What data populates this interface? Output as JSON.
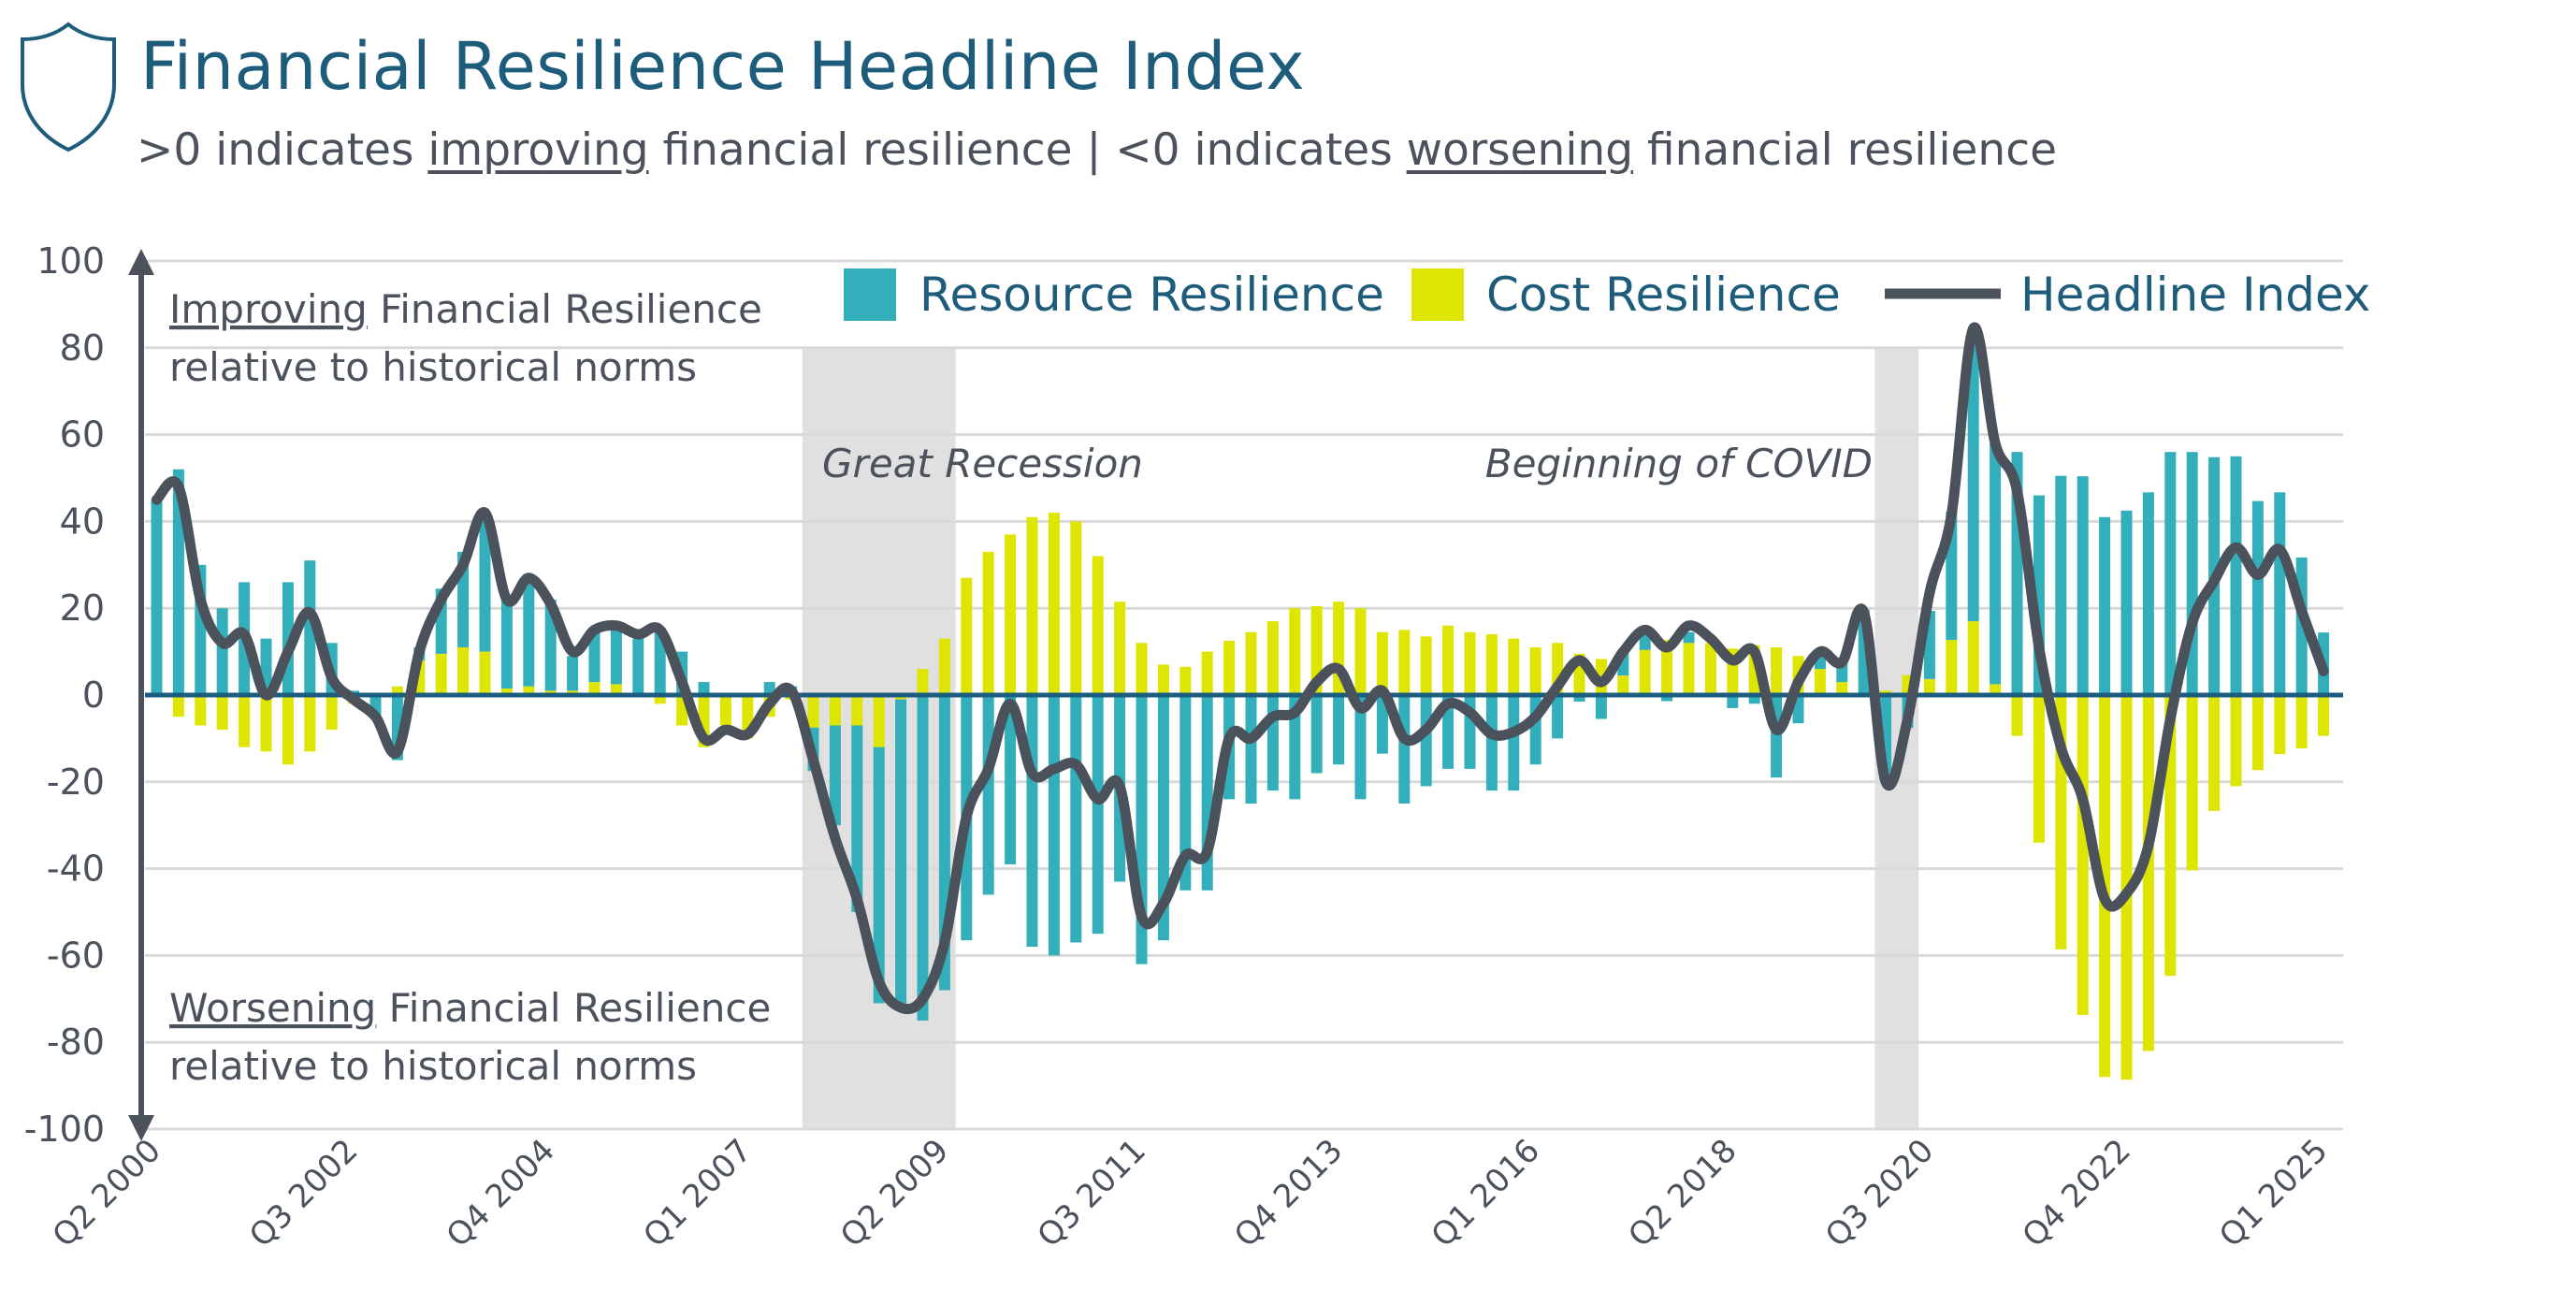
{
  "header": {
    "title": "Financial Resilience Headline Index",
    "subtitle_parts": [
      ">0 indicates ",
      "improving",
      " financial resilience | <0 indicates ",
      "worsening",
      " financial resilience"
    ],
    "icon": "shield-icon"
  },
  "colors": {
    "resource": "#33AEBB",
    "cost": "#DDE500",
    "headline": "#4B525C",
    "zero_line": "#1B5D80",
    "title": "#1D5C7A",
    "shade": "#E0E0E0",
    "grid": "#D9D9D9"
  },
  "chart_data": {
    "type": "bar",
    "stacked": true,
    "ylim": [
      -100,
      100
    ],
    "yticks": [
      100,
      80,
      60,
      40,
      20,
      0,
      -20,
      -40,
      -60,
      -80,
      -100
    ],
    "grid": true,
    "legend_placement": "top",
    "x_tick_labels": [
      "Q2 2000",
      "Q3 2002",
      "Q4 2004",
      "Q1 2007",
      "Q2 2009",
      "Q3 2011",
      "Q4 2013",
      "Q1 2016",
      "Q2 2018",
      "Q3 2020",
      "Q4 2022",
      "Q1 2025"
    ],
    "categories": [
      "Q2 2000",
      "Q3 2000",
      "Q4 2000",
      "Q1 2001",
      "Q2 2001",
      "Q3 2001",
      "Q4 2001",
      "Q1 2002",
      "Q2 2002",
      "Q3 2002",
      "Q4 2002",
      "Q1 2003",
      "Q2 2003",
      "Q3 2003",
      "Q4 2003",
      "Q1 2004",
      "Q2 2004",
      "Q3 2004",
      "Q4 2004",
      "Q1 2005",
      "Q2 2005",
      "Q3 2005",
      "Q4 2005",
      "Q1 2006",
      "Q2 2006",
      "Q3 2006",
      "Q4 2006",
      "Q1 2007",
      "Q2 2007",
      "Q3 2007",
      "Q4 2007",
      "Q1 2008",
      "Q2 2008",
      "Q3 2008",
      "Q4 2008",
      "Q1 2009",
      "Q2 2009",
      "Q3 2009",
      "Q4 2009",
      "Q1 2010",
      "Q2 2010",
      "Q3 2010",
      "Q4 2010",
      "Q1 2011",
      "Q2 2011",
      "Q3 2011",
      "Q4 2011",
      "Q1 2012",
      "Q2 2012",
      "Q3 2012",
      "Q4 2012",
      "Q1 2013",
      "Q2 2013",
      "Q3 2013",
      "Q4 2013",
      "Q1 2014",
      "Q2 2014",
      "Q3 2014",
      "Q4 2014",
      "Q1 2015",
      "Q2 2015",
      "Q3 2015",
      "Q4 2015",
      "Q1 2016",
      "Q2 2016",
      "Q3 2016",
      "Q4 2016",
      "Q1 2017",
      "Q2 2017",
      "Q3 2017",
      "Q4 2017",
      "Q1 2018",
      "Q2 2018",
      "Q3 2018",
      "Q4 2018",
      "Q1 2019",
      "Q2 2019",
      "Q3 2019",
      "Q4 2019",
      "Q1 2020",
      "Q2 2020",
      "Q3 2020",
      "Q4 2020",
      "Q1 2021",
      "Q2 2021",
      "Q3 2021",
      "Q4 2021",
      "Q1 2022",
      "Q2 2022",
      "Q3 2022",
      "Q4 2022",
      "Q1 2023",
      "Q2 2023",
      "Q3 2023",
      "Q4 2023",
      "Q1 2024",
      "Q2 2024",
      "Q3 2024",
      "Q4 2024",
      "Q1 2025"
    ],
    "series": [
      {
        "name": "Resource Resilience",
        "kind": "bar",
        "values": [
          45,
          52,
          30,
          20,
          26,
          13,
          26,
          31,
          12,
          1,
          -5,
          -15,
          3,
          15,
          22,
          31,
          21,
          24,
          21,
          8,
          11.5,
          12.5,
          13,
          15.5,
          10,
          3,
          0,
          0.5,
          3,
          2,
          -10,
          -23,
          -43,
          -59,
          -70,
          -75,
          -68,
          -56.5,
          -46,
          -39,
          -58,
          -60,
          -57,
          -55,
          -43,
          -62,
          -56.5,
          -45,
          -45,
          -24,
          -25,
          -22,
          -24,
          -18,
          -16,
          -24,
          -13.5,
          -25,
          -21,
          -17,
          -17,
          -22,
          -22,
          -16,
          -10,
          -1.5,
          -5.5,
          5.5,
          3.5,
          -1.4,
          2.5,
          0,
          -3,
          -2,
          -19,
          -6.5,
          3,
          4.6,
          19.7,
          -20,
          -7.6,
          15.7,
          29.5,
          67.5,
          55.5,
          56,
          46,
          50.5,
          50.4,
          41,
          42.5,
          46.7,
          56,
          56,
          54.8,
          55,
          44.7,
          46.7,
          31.7,
          14.4
        ]
      },
      {
        "name": "Cost Resilience",
        "kind": "bar",
        "values": [
          0,
          -5,
          -7,
          -8,
          -12,
          -13,
          -16,
          -13,
          -8,
          -2,
          0,
          2,
          8,
          9.5,
          11,
          10,
          1.5,
          2,
          1,
          1,
          3,
          2.5,
          0,
          -2,
          -7,
          -12,
          -7,
          -10,
          -5,
          -1,
          -7.5,
          -7,
          -7,
          -12,
          -1,
          6,
          13,
          27,
          33,
          37,
          41,
          42,
          40,
          32,
          21.5,
          12,
          7,
          6.5,
          10,
          12.5,
          14.5,
          17,
          20,
          20.5,
          21.5,
          20,
          14.5,
          15,
          13.5,
          16,
          14.5,
          14,
          13,
          11,
          12,
          9.5,
          8.3,
          4.5,
          10.4,
          12.7,
          12,
          12,
          10.7,
          11.5,
          11,
          9,
          6,
          3,
          0,
          1,
          4.6,
          3.7,
          12.7,
          17,
          2.5,
          -9.4,
          -34,
          -58.6,
          -73.7,
          -88,
          -88.6,
          -82,
          -64.7,
          -40.4,
          -26.7,
          -21,
          -17.3,
          -13.6,
          -12.3,
          -9.4
        ]
      },
      {
        "name": "Headline Index",
        "kind": "line",
        "values": [
          45,
          48,
          22,
          12,
          14,
          0,
          10,
          19,
          4,
          -1,
          -5,
          -13,
          10,
          22,
          30,
          42,
          22,
          27,
          21,
          10,
          15,
          16,
          14,
          15,
          3,
          -10,
          -8,
          -9,
          -2,
          1,
          -15,
          -33,
          -47,
          -66,
          -72,
          -70,
          -57,
          -28,
          -17,
          -2,
          -18,
          -17,
          -16,
          -24,
          -21,
          -51,
          -48,
          -37,
          -36,
          -10,
          -10,
          -5,
          -4,
          3,
          6,
          -3,
          1,
          -10,
          -8,
          -2,
          -4,
          -9,
          -8.5,
          -5,
          2,
          8,
          3,
          10,
          15,
          11,
          16,
          13,
          8,
          10,
          -8,
          3,
          10,
          7.6,
          19,
          -20,
          -5.5,
          23.5,
          41.5,
          84.5,
          58,
          47,
          11,
          -12,
          -24,
          -47,
          -45.7,
          -34.6,
          -5.5,
          16.6,
          26.3,
          34,
          27.7,
          33.5,
          19.4,
          5.5
        ]
      }
    ],
    "shaded_periods": [
      {
        "label": "Great Recession",
        "from": "Q4 2007",
        "to": "Q2 2009"
      },
      {
        "label": "Beginning of COVID",
        "from": "Q1 2020",
        "to": "Q2 2020"
      }
    ],
    "annotations": {
      "top_under": "Improving",
      "top_rest": " Financial Resilience",
      "top_line2": "relative to historical norms",
      "bottom_under": "Worsening",
      "bottom_rest": " Financial Resilience",
      "bottom_line2": "relative to historical norms"
    }
  }
}
